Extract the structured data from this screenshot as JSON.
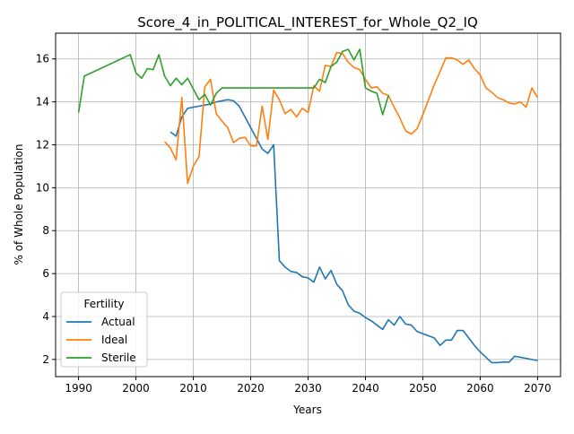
{
  "chart_data": {
    "type": "line",
    "title": "Score_4_in_POLITICAL_INTEREST_for_Whole_Q2_IQ",
    "xlabel": "Years",
    "ylabel": "% of Whole Population",
    "xlim": [
      1986,
      2074
    ],
    "ylim": [
      1.2,
      17.2
    ],
    "xticks": [
      1990,
      2000,
      2010,
      2020,
      2030,
      2040,
      2050,
      2060,
      2070
    ],
    "yticks": [
      2,
      4,
      6,
      8,
      10,
      12,
      14,
      16
    ],
    "grid": true,
    "legend": {
      "title": "Fertility",
      "position": "lower-left"
    },
    "series": [
      {
        "name": "Actual",
        "color": "#1f77b4",
        "points": [
          [
            2006,
            12.6
          ],
          [
            2007,
            12.4
          ],
          [
            2008,
            13.3
          ],
          [
            2009,
            13.7
          ],
          [
            2010,
            13.75
          ],
          [
            2011,
            13.8
          ],
          [
            2012,
            13.85
          ],
          [
            2013,
            13.9
          ],
          [
            2014,
            14.0
          ],
          [
            2015,
            14.05
          ],
          [
            2016,
            14.1
          ],
          [
            2017,
            14.05
          ],
          [
            2018,
            13.8
          ],
          [
            2019,
            13.3
          ],
          [
            2020,
            12.8
          ],
          [
            2021,
            12.3
          ],
          [
            2022,
            11.8
          ],
          [
            2023,
            11.6
          ],
          [
            2024,
            12.0
          ],
          [
            2025,
            6.6
          ],
          [
            2026,
            6.3
          ],
          [
            2027,
            6.1
          ],
          [
            2028,
            6.05
          ],
          [
            2029,
            5.85
          ],
          [
            2030,
            5.8
          ],
          [
            2031,
            5.6
          ],
          [
            2032,
            6.3
          ],
          [
            2033,
            5.75
          ],
          [
            2034,
            6.15
          ],
          [
            2035,
            5.5
          ],
          [
            2036,
            5.2
          ],
          [
            2037,
            4.55
          ],
          [
            2038,
            4.25
          ],
          [
            2039,
            4.15
          ],
          [
            2040,
            3.95
          ],
          [
            2041,
            3.8
          ],
          [
            2042,
            3.6
          ],
          [
            2043,
            3.4
          ],
          [
            2044,
            3.85
          ],
          [
            2045,
            3.6
          ],
          [
            2046,
            4.0
          ],
          [
            2047,
            3.65
          ],
          [
            2048,
            3.6
          ],
          [
            2049,
            3.3
          ],
          [
            2050,
            3.2
          ],
          [
            2051,
            3.1
          ],
          [
            2052,
            3.0
          ],
          [
            2053,
            2.65
          ],
          [
            2054,
            2.9
          ],
          [
            2055,
            2.9
          ],
          [
            2056,
            3.35
          ],
          [
            2057,
            3.35
          ],
          [
            2058,
            3.0
          ],
          [
            2059,
            2.65
          ],
          [
            2060,
            2.35
          ],
          [
            2061,
            2.1
          ],
          [
            2062,
            1.85
          ],
          [
            2063,
            1.85
          ],
          [
            2064,
            1.88
          ],
          [
            2065,
            1.87
          ],
          [
            2066,
            2.15
          ],
          [
            2067,
            2.1
          ],
          [
            2068,
            2.05
          ],
          [
            2069,
            2.0
          ],
          [
            2070,
            1.95
          ]
        ]
      },
      {
        "name": "Ideal",
        "color": "#ff7f0e",
        "points": [
          [
            2005,
            12.15
          ],
          [
            2006,
            11.85
          ],
          [
            2007,
            11.3
          ],
          [
            2008,
            14.2
          ],
          [
            2009,
            10.2
          ],
          [
            2010,
            11.0
          ],
          [
            2011,
            11.45
          ],
          [
            2012,
            14.7
          ],
          [
            2013,
            15.05
          ],
          [
            2014,
            13.45
          ],
          [
            2015,
            13.1
          ],
          [
            2016,
            12.8
          ],
          [
            2017,
            12.1
          ],
          [
            2018,
            12.3
          ],
          [
            2019,
            12.35
          ],
          [
            2020,
            11.95
          ],
          [
            2021,
            11.95
          ],
          [
            2022,
            13.8
          ],
          [
            2023,
            12.25
          ],
          [
            2024,
            14.55
          ],
          [
            2025,
            14.1
          ],
          [
            2026,
            13.45
          ],
          [
            2027,
            13.65
          ],
          [
            2028,
            13.3
          ],
          [
            2029,
            13.7
          ],
          [
            2030,
            13.5
          ],
          [
            2031,
            14.75
          ],
          [
            2032,
            14.5
          ],
          [
            2033,
            15.7
          ],
          [
            2034,
            15.65
          ],
          [
            2035,
            16.3
          ],
          [
            2036,
            16.25
          ],
          [
            2037,
            15.85
          ],
          [
            2038,
            15.6
          ],
          [
            2039,
            15.5
          ],
          [
            2040,
            15.05
          ],
          [
            2041,
            14.65
          ],
          [
            2042,
            14.7
          ],
          [
            2043,
            14.4
          ],
          [
            2044,
            14.3
          ],
          [
            2045,
            13.75
          ],
          [
            2046,
            13.25
          ],
          [
            2047,
            12.65
          ],
          [
            2048,
            12.5
          ],
          [
            2049,
            12.75
          ],
          [
            2050,
            13.4
          ],
          [
            2051,
            14.1
          ],
          [
            2052,
            14.8
          ],
          [
            2053,
            15.4
          ],
          [
            2054,
            16.05
          ],
          [
            2055,
            16.05
          ],
          [
            2056,
            15.95
          ],
          [
            2057,
            15.75
          ],
          [
            2058,
            15.95
          ],
          [
            2059,
            15.55
          ],
          [
            2060,
            15.25
          ],
          [
            2061,
            14.65
          ],
          [
            2062,
            14.45
          ],
          [
            2063,
            14.2
          ],
          [
            2064,
            14.1
          ],
          [
            2065,
            13.95
          ],
          [
            2066,
            13.9
          ],
          [
            2067,
            14.0
          ],
          [
            2068,
            13.75
          ],
          [
            2069,
            14.65
          ],
          [
            2070,
            14.2
          ]
        ]
      },
      {
        "name": "Sterile",
        "color": "#2ca02c",
        "points": [
          [
            1990,
            13.5
          ],
          [
            1991,
            15.2
          ],
          [
            1999,
            16.2
          ],
          [
            2000,
            15.35
          ],
          [
            2001,
            15.1
          ],
          [
            2002,
            15.55
          ],
          [
            2003,
            15.5
          ],
          [
            2004,
            16.2
          ],
          [
            2005,
            15.2
          ],
          [
            2006,
            14.75
          ],
          [
            2007,
            15.1
          ],
          [
            2008,
            14.8
          ],
          [
            2009,
            15.1
          ],
          [
            2010,
            14.6
          ],
          [
            2011,
            14.1
          ],
          [
            2012,
            14.35
          ],
          [
            2013,
            13.85
          ],
          [
            2014,
            14.4
          ],
          [
            2015,
            14.65
          ],
          [
            2016,
            14.65
          ],
          [
            2020,
            14.65
          ],
          [
            2025,
            14.65
          ],
          [
            2030,
            14.65
          ],
          [
            2031,
            14.65
          ],
          [
            2032,
            15.05
          ],
          [
            2033,
            14.9
          ],
          [
            2034,
            15.65
          ],
          [
            2035,
            15.85
          ],
          [
            2036,
            16.35
          ],
          [
            2037,
            16.45
          ],
          [
            2038,
            15.95
          ],
          [
            2039,
            16.45
          ],
          [
            2040,
            14.65
          ],
          [
            2041,
            14.5
          ],
          [
            2042,
            14.4
          ],
          [
            2043,
            13.4
          ],
          [
            2044,
            14.3
          ]
        ]
      }
    ]
  }
}
